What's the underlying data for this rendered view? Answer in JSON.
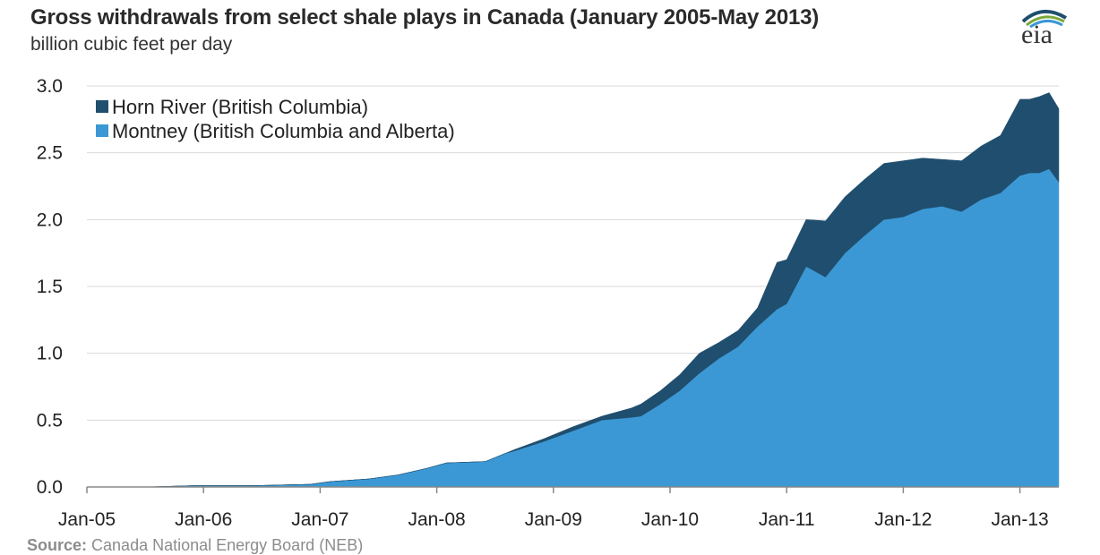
{
  "header": {
    "title": "Gross withdrawals from select shale plays in Canada (January 2005-May 2013)",
    "subtitle": "billion cubic feet per day",
    "logo_text": "eia"
  },
  "footer": {
    "source_label": "Source:",
    "source_text": " Canada National Energy Board (NEB)"
  },
  "colors": {
    "horn_river": "#1f4e6e",
    "montney": "#3b98d4",
    "grid": "#d9d9d9",
    "axis": "#888888"
  },
  "chart_data": {
    "type": "area",
    "stacked": true,
    "title": "Gross withdrawals from select shale plays in Canada (January 2005-May 2013)",
    "ylabel": "billion cubic feet per day",
    "xlabel": "",
    "ylim": [
      0,
      3.0
    ],
    "yticks": [
      "0.0",
      "0.5",
      "1.0",
      "1.5",
      "2.0",
      "2.5",
      "3.0"
    ],
    "xticks": [
      "Jan-05",
      "Jan-06",
      "Jan-07",
      "Jan-08",
      "Jan-09",
      "Jan-10",
      "Jan-11",
      "Jan-12",
      "Jan-13"
    ],
    "x": [
      "2005-01",
      "2005-07",
      "2005-12",
      "2006-06",
      "2006-12",
      "2007-02",
      "2007-06",
      "2007-09",
      "2007-12",
      "2008-02",
      "2008-06",
      "2008-08",
      "2008-09",
      "2008-12",
      "2009-03",
      "2009-06",
      "2009-09",
      "2009-10",
      "2009-12",
      "2010-02",
      "2010-04",
      "2010-06",
      "2010-08",
      "2010-10",
      "2010-12",
      "2011-01",
      "2011-03",
      "2011-05",
      "2011-07",
      "2011-09",
      "2011-11",
      "2012-01",
      "2012-03",
      "2012-05",
      "2012-07",
      "2012-09",
      "2012-11",
      "2013-01",
      "2013-02",
      "2013-03",
      "2013-04",
      "2013-05"
    ],
    "legend_position": "top-left",
    "grid": true,
    "series": [
      {
        "name": "Montney (British Columbia and Alberta)",
        "values": [
          0.0,
          0.0,
          0.01,
          0.01,
          0.02,
          0.04,
          0.06,
          0.09,
          0.14,
          0.18,
          0.19,
          0.25,
          0.27,
          0.34,
          0.42,
          0.5,
          0.52,
          0.53,
          0.62,
          0.72,
          0.85,
          0.96,
          1.05,
          1.2,
          1.33,
          1.37,
          1.65,
          1.57,
          1.75,
          1.88,
          2.0,
          2.02,
          2.08,
          2.1,
          2.06,
          2.15,
          2.2,
          2.33,
          2.35,
          2.35,
          2.38,
          2.28
        ]
      },
      {
        "name": "Horn River (British Columbia)",
        "values": [
          0.0,
          0.0,
          0.0,
          0.0,
          0.0,
          0.0,
          0.0,
          0.0,
          0.0,
          0.0,
          0.0,
          0.0,
          0.01,
          0.02,
          0.03,
          0.03,
          0.07,
          0.09,
          0.1,
          0.12,
          0.15,
          0.12,
          0.12,
          0.14,
          0.35,
          0.33,
          0.35,
          0.42,
          0.42,
          0.42,
          0.42,
          0.42,
          0.38,
          0.35,
          0.38,
          0.4,
          0.43,
          0.57,
          0.55,
          0.57,
          0.57,
          0.55
        ]
      }
    ]
  }
}
